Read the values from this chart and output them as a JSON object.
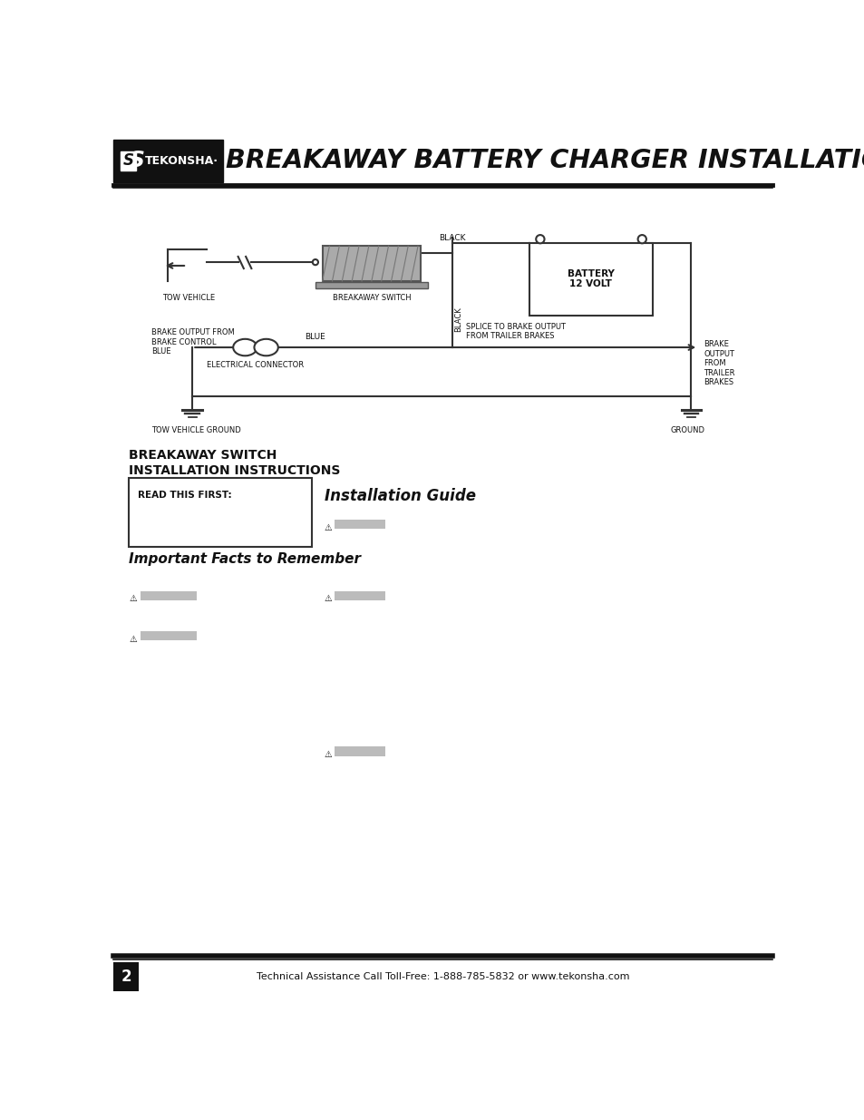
{
  "title": "BREAKAWAY BATTERY CHARGER INSTALLATION",
  "tekonsha_text": "TEKONSHA·",
  "bg_color": "#ffffff",
  "footer_text": "Technical Assistance Call Toll-Free: 1-888-785-5832 or www.tekonsha.com",
  "footer_page": "2",
  "section1_title_line1": "BREAKAWAY SWITCH",
  "section1_title_line2": "INSTALLATION INSTRUCTIONS",
  "read_this_first": "READ THIS FIRST:",
  "installation_guide": "Installation Guide",
  "important_facts": "Important Facts to Remember",
  "diagram": {
    "black_top": "BLACK",
    "battery": "BATTERY\n12 VOLT",
    "tow_vehicle": "TOW VEHICLE",
    "breakaway_switch": "BREAKAWAY SWITCH",
    "black_side": "BLACK",
    "brake_output": "BRAKE OUTPUT FROM\nBRAKE CONTROL\nBLUE",
    "blue": "BLUE",
    "splice": "SPLICE TO BRAKE OUTPUT\nFROM TRAILER BRAKES",
    "brake_output_right": "BRAKE\nOUTPUT\nFROM\nTRAILER\nBRAKES",
    "electrical_connector": "ELECTRICAL CONNECTOR",
    "tow_vehicle_ground": "TOW VEHICLE GROUND",
    "ground": "GROUND"
  }
}
